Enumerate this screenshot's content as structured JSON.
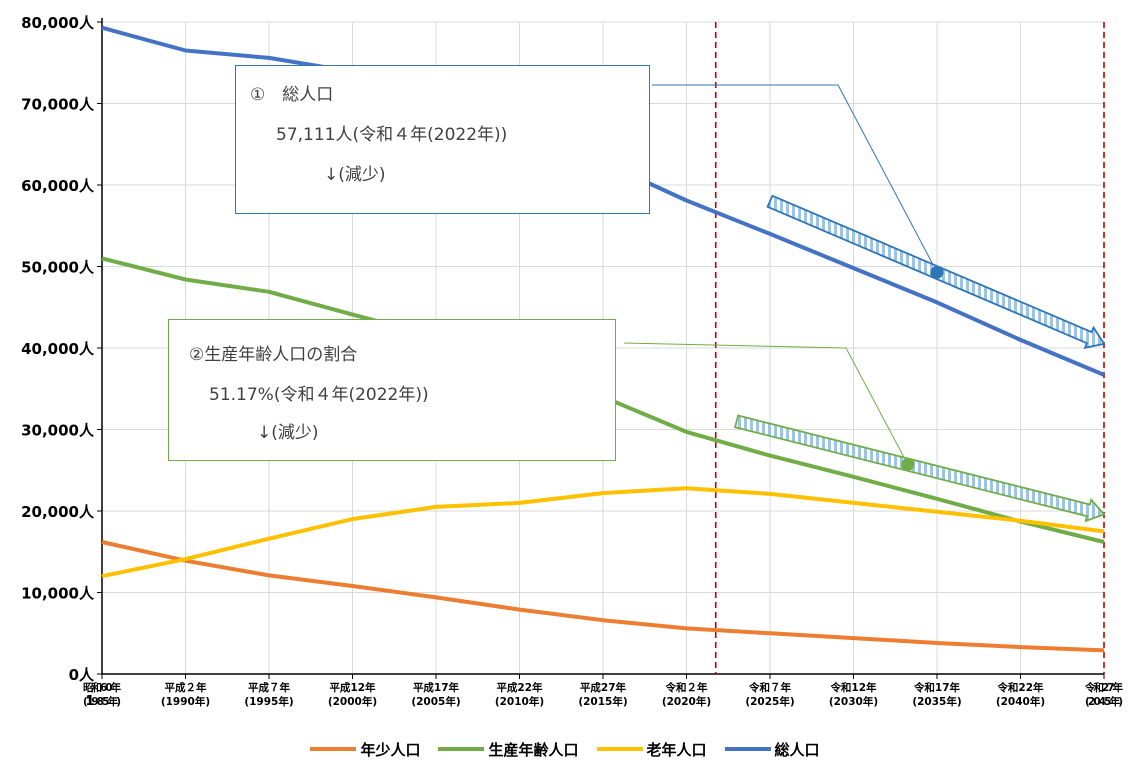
{
  "chart_data": {
    "type": "line",
    "categories": [
      "昭和60年\n(1985年)",
      "平成２年\n(1990年)",
      "平成７年\n(1995年)",
      "平成12年\n(2000年)",
      "平成17年\n(2005年)",
      "平成22年\n(2010年)",
      "平成27年\n(2015年)",
      "令和２年\n(2020年)",
      "令和７年\n(2025年)",
      "令和12年\n(2030年)",
      "令和17年\n(2035年)",
      "令和22年\n(2040年)",
      "令和27年\n(2045年)"
    ],
    "category_marker": "1",
    "series": [
      {
        "name": "年少人口",
        "color": "#ED7D31",
        "values": [
          16200,
          13900,
          12100,
          10800,
          9400,
          7900,
          6600,
          5600,
          5000,
          4400,
          3800,
          3300,
          2900
        ]
      },
      {
        "name": "生産年齢人口",
        "color": "#70AD47",
        "values": [
          51000,
          48400,
          46900,
          44100,
          41400,
          37600,
          34000,
          29700,
          26800,
          24200,
          21500,
          18700,
          16200
        ]
      },
      {
        "name": "老年人口",
        "color": "#FFC000",
        "values": [
          12000,
          14100,
          16600,
          19000,
          20500,
          21000,
          22200,
          22800,
          22100,
          21000,
          19900,
          18800,
          17500
        ]
      },
      {
        "name": "総人口",
        "color": "#4472C4",
        "values": [
          79300,
          76500,
          75600,
          73900,
          71300,
          66500,
          62800,
          58100,
          54000,
          49800,
          45600,
          41000,
          36700
        ]
      }
    ],
    "y_ticks": [
      "0人",
      "10,000人",
      "20,000人",
      "30,000人",
      "40,000人",
      "50,000人",
      "60,000人",
      "70,000人",
      "80,000人"
    ],
    "ylim": [
      0,
      80000
    ],
    "grid": true,
    "legend_position": "bottom",
    "reference_lines": {
      "style": "dashed",
      "color": "#C00000",
      "x_positions": [
        7.35,
        12.0
      ]
    },
    "annotations": [
      {
        "label": "総人口",
        "trend": "減少",
        "trend_x": [
          8.0,
          12.0
        ],
        "trend_y": [
          58000,
          40500
        ],
        "point_x": 10.0,
        "point_y": 49300
      },
      {
        "label": "生産年齢人口の割合",
        "trend": "減少",
        "trend_x": [
          7.6,
          12.0
        ],
        "trend_y": [
          31000,
          19600
        ],
        "point_x": 9.65,
        "point_y": 25700
      }
    ]
  },
  "callouts": [
    {
      "lines": [
        "①　総人口",
        "57,111人(令和４年(2022年))",
        "↓(減少)"
      ]
    },
    {
      "lines": [
        "②生産年齢人口の割合",
        "51.17%(令和４年(2022年))",
        "↓(減少)"
      ]
    }
  ]
}
